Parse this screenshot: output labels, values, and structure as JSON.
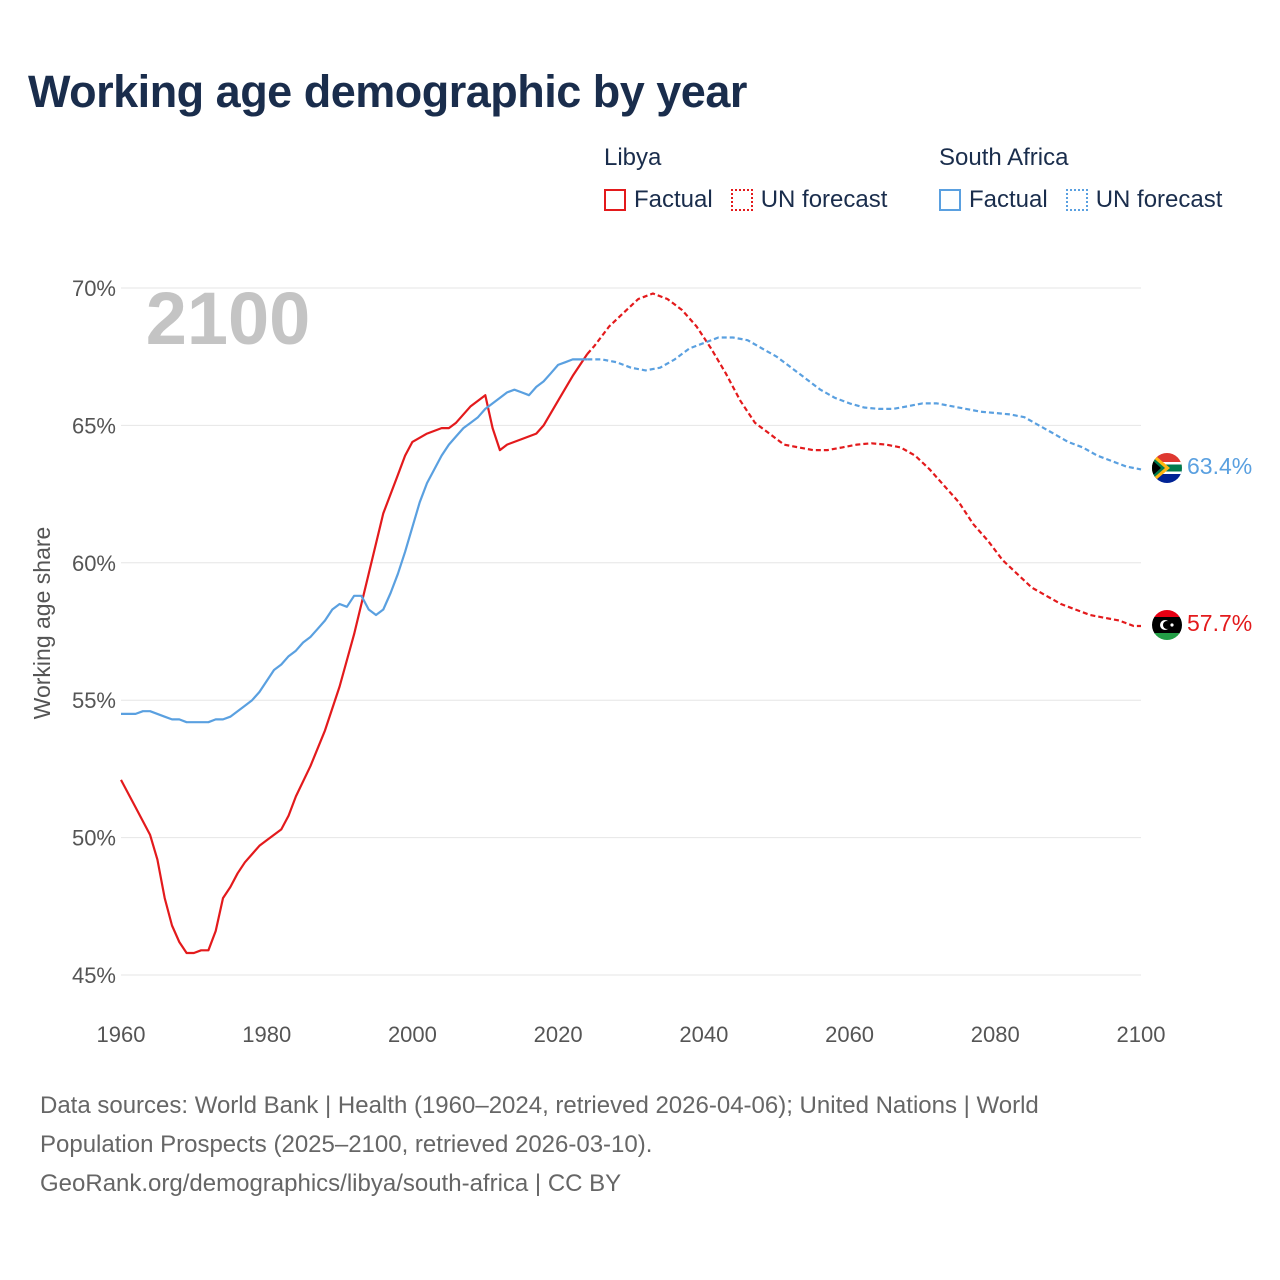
{
  "title": "Working age demographic by year",
  "legend": {
    "libya": {
      "name": "Libya",
      "factual": "Factual",
      "forecast": "UN forecast"
    },
    "south_africa": {
      "name": "South Africa",
      "factual": "Factual",
      "forecast": "UN forecast"
    }
  },
  "colors": {
    "libya": "#e31a1c",
    "south_africa": "#5aa0e0",
    "grid": "#e6e6e6"
  },
  "chart_data": {
    "type": "line",
    "title": "Working age demographic by year",
    "year_watermark": "2100",
    "xlabel": "",
    "ylabel": "Working age share",
    "xlim": [
      1960,
      2100
    ],
    "ylim": [
      45,
      70
    ],
    "x_ticks": [
      1960,
      1980,
      2000,
      2020,
      2040,
      2060,
      2080,
      2100
    ],
    "y_ticks": [
      45,
      50,
      55,
      60,
      65,
      70
    ],
    "y_tick_labels": [
      "45%",
      "50%",
      "55%",
      "60%",
      "65%",
      "70%"
    ],
    "series": [
      {
        "name": "Libya",
        "end_label": "57.7%",
        "factual": [
          [
            1960,
            52.1
          ],
          [
            1962,
            51.1
          ],
          [
            1964,
            50.1
          ],
          [
            1965,
            49.2
          ],
          [
            1966,
            47.8
          ],
          [
            1967,
            46.8
          ],
          [
            1968,
            46.2
          ],
          [
            1969,
            45.8
          ],
          [
            1970,
            45.8
          ],
          [
            1971,
            45.9
          ],
          [
            1972,
            45.9
          ],
          [
            1973,
            46.6
          ],
          [
            1974,
            47.8
          ],
          [
            1975,
            48.2
          ],
          [
            1976,
            48.7
          ],
          [
            1977,
            49.1
          ],
          [
            1978,
            49.4
          ],
          [
            1979,
            49.7
          ],
          [
            1980,
            49.9
          ],
          [
            1982,
            50.3
          ],
          [
            1983,
            50.8
          ],
          [
            1984,
            51.5
          ],
          [
            1986,
            52.6
          ],
          [
            1988,
            53.9
          ],
          [
            1990,
            55.5
          ],
          [
            1992,
            57.4
          ],
          [
            1994,
            59.6
          ],
          [
            1996,
            61.8
          ],
          [
            1998,
            63.2
          ],
          [
            1999,
            63.9
          ],
          [
            2000,
            64.4
          ],
          [
            2002,
            64.7
          ],
          [
            2004,
            64.9
          ],
          [
            2005,
            64.9
          ],
          [
            2006,
            65.1
          ],
          [
            2008,
            65.7
          ],
          [
            2010,
            66.1
          ],
          [
            2011,
            64.9
          ],
          [
            2012,
            64.1
          ],
          [
            2013,
            64.3
          ],
          [
            2015,
            64.5
          ],
          [
            2017,
            64.7
          ],
          [
            2018,
            65.0
          ],
          [
            2020,
            65.9
          ],
          [
            2022,
            66.8
          ],
          [
            2024,
            67.6
          ]
        ],
        "forecast": [
          [
            2024,
            67.6
          ],
          [
            2025,
            67.9
          ],
          [
            2027,
            68.6
          ],
          [
            2029,
            69.1
          ],
          [
            2031,
            69.6
          ],
          [
            2033,
            69.8
          ],
          [
            2035,
            69.6
          ],
          [
            2037,
            69.2
          ],
          [
            2039,
            68.6
          ],
          [
            2041,
            67.8
          ],
          [
            2043,
            66.9
          ],
          [
            2045,
            65.9
          ],
          [
            2047,
            65.1
          ],
          [
            2049,
            64.7
          ],
          [
            2051,
            64.3
          ],
          [
            2053,
            64.2
          ],
          [
            2055,
            64.1
          ],
          [
            2057,
            64.1
          ],
          [
            2059,
            64.2
          ],
          [
            2061,
            64.3
          ],
          [
            2063,
            64.35
          ],
          [
            2065,
            64.3
          ],
          [
            2067,
            64.2
          ],
          [
            2069,
            63.9
          ],
          [
            2071,
            63.4
          ],
          [
            2073,
            62.8
          ],
          [
            2075,
            62.2
          ],
          [
            2077,
            61.4
          ],
          [
            2079,
            60.8
          ],
          [
            2081,
            60.1
          ],
          [
            2083,
            59.6
          ],
          [
            2085,
            59.1
          ],
          [
            2087,
            58.8
          ],
          [
            2089,
            58.5
          ],
          [
            2091,
            58.3
          ],
          [
            2093,
            58.1
          ],
          [
            2095,
            58.0
          ],
          [
            2097,
            57.9
          ],
          [
            2099,
            57.7
          ],
          [
            2100,
            57.7
          ]
        ]
      },
      {
        "name": "South Africa",
        "end_label": "63.4%",
        "factual": [
          [
            1960,
            54.5
          ],
          [
            1962,
            54.5
          ],
          [
            1963,
            54.6
          ],
          [
            1964,
            54.6
          ],
          [
            1966,
            54.4
          ],
          [
            1967,
            54.3
          ],
          [
            1968,
            54.3
          ],
          [
            1969,
            54.2
          ],
          [
            1970,
            54.2
          ],
          [
            1972,
            54.2
          ],
          [
            1973,
            54.3
          ],
          [
            1974,
            54.3
          ],
          [
            1975,
            54.4
          ],
          [
            1977,
            54.8
          ],
          [
            1978,
            55.0
          ],
          [
            1979,
            55.3
          ],
          [
            1980,
            55.7
          ],
          [
            1981,
            56.1
          ],
          [
            1982,
            56.3
          ],
          [
            1983,
            56.6
          ],
          [
            1984,
            56.8
          ],
          [
            1985,
            57.1
          ],
          [
            1986,
            57.3
          ],
          [
            1987,
            57.6
          ],
          [
            1988,
            57.9
          ],
          [
            1989,
            58.3
          ],
          [
            1990,
            58.5
          ],
          [
            1991,
            58.4
          ],
          [
            1992,
            58.8
          ],
          [
            1993,
            58.8
          ],
          [
            1994,
            58.3
          ],
          [
            1995,
            58.1
          ],
          [
            1996,
            58.3
          ],
          [
            1997,
            58.9
          ],
          [
            1998,
            59.6
          ],
          [
            1999,
            60.4
          ],
          [
            2000,
            61.3
          ],
          [
            2001,
            62.2
          ],
          [
            2002,
            62.9
          ],
          [
            2003,
            63.4
          ],
          [
            2004,
            63.9
          ],
          [
            2005,
            64.3
          ],
          [
            2006,
            64.6
          ],
          [
            2007,
            64.9
          ],
          [
            2008,
            65.1
          ],
          [
            2009,
            65.3
          ],
          [
            2010,
            65.6
          ],
          [
            2011,
            65.8
          ],
          [
            2012,
            66.0
          ],
          [
            2013,
            66.2
          ],
          [
            2014,
            66.3
          ],
          [
            2015,
            66.2
          ],
          [
            2016,
            66.1
          ],
          [
            2017,
            66.4
          ],
          [
            2018,
            66.6
          ],
          [
            2019,
            66.9
          ],
          [
            2020,
            67.2
          ],
          [
            2021,
            67.3
          ],
          [
            2022,
            67.4
          ],
          [
            2023,
            67.4
          ],
          [
            2024,
            67.4
          ]
        ],
        "forecast": [
          [
            2024,
            67.4
          ],
          [
            2026,
            67.4
          ],
          [
            2028,
            67.3
          ],
          [
            2030,
            67.1
          ],
          [
            2032,
            67.0
          ],
          [
            2034,
            67.1
          ],
          [
            2036,
            67.4
          ],
          [
            2038,
            67.8
          ],
          [
            2040,
            68.0
          ],
          [
            2042,
            68.2
          ],
          [
            2044,
            68.2
          ],
          [
            2046,
            68.1
          ],
          [
            2048,
            67.8
          ],
          [
            2050,
            67.5
          ],
          [
            2052,
            67.1
          ],
          [
            2054,
            66.7
          ],
          [
            2056,
            66.3
          ],
          [
            2058,
            66.0
          ],
          [
            2060,
            65.8
          ],
          [
            2062,
            65.65
          ],
          [
            2064,
            65.6
          ],
          [
            2066,
            65.6
          ],
          [
            2068,
            65.7
          ],
          [
            2070,
            65.8
          ],
          [
            2072,
            65.8
          ],
          [
            2074,
            65.7
          ],
          [
            2076,
            65.6
          ],
          [
            2078,
            65.5
          ],
          [
            2080,
            65.45
          ],
          [
            2082,
            65.4
          ],
          [
            2084,
            65.3
          ],
          [
            2086,
            65.0
          ],
          [
            2088,
            64.7
          ],
          [
            2090,
            64.4
          ],
          [
            2092,
            64.2
          ],
          [
            2094,
            63.9
          ],
          [
            2096,
            63.7
          ],
          [
            2098,
            63.5
          ],
          [
            2100,
            63.4
          ]
        ]
      }
    ]
  },
  "footer": {
    "line1": "Data sources: World Bank | Health (1960–2024, retrieved 2026-04-06); United Nations | World",
    "line2": "Population Prospects (2025–2100, retrieved 2026-03-10).",
    "line3": "GeoRank.org/demographics/libya/south-africa | CC BY"
  }
}
